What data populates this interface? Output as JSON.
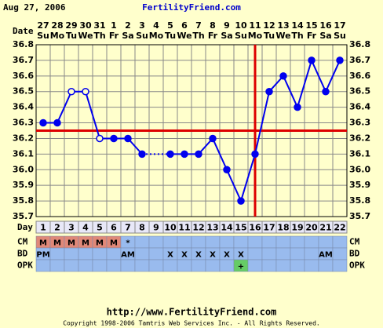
{
  "header": {
    "date": "Aug 27, 2006",
    "site": "FertilityFriend.com"
  },
  "chart_data": {
    "type": "line",
    "x_label": "Date",
    "categories": [
      "27",
      "28",
      "29",
      "30",
      "31",
      "1",
      "2",
      "3",
      "4",
      "5",
      "6",
      "7",
      "8",
      "9",
      "10",
      "11",
      "12",
      "13",
      "14",
      "15",
      "16",
      "17"
    ],
    "weekdays": [
      "Su",
      "Mo",
      "Tu",
      "We",
      "Th",
      "Fr",
      "Sa",
      "Su",
      "Mo",
      "Tu",
      "We",
      "Th",
      "Fr",
      "Sa",
      "Su",
      "Mo",
      "Tu",
      "We",
      "Th",
      "Fr",
      "Sa",
      "Su"
    ],
    "series": [
      {
        "color": "#0000ee",
        "values": [
          36.3,
          36.3,
          36.5,
          36.5,
          36.2,
          36.2,
          36.2,
          36.1,
          null,
          36.1,
          36.1,
          36.1,
          36.2,
          36.0,
          35.8,
          36.1,
          36.5,
          36.6,
          36.4,
          36.7,
          36.5,
          36.7
        ],
        "open": [
          false,
          false,
          true,
          true,
          true,
          false,
          false,
          false,
          false,
          false,
          false,
          false,
          false,
          false,
          false,
          false,
          false,
          false,
          false,
          false,
          false,
          false
        ]
      }
    ],
    "dotted_gaps": true,
    "ylim": [
      35.7,
      36.8
    ],
    "yticks": [
      35.7,
      35.8,
      35.9,
      {
        "value": 36,
        "label": "36.0"
      },
      36.1,
      36.2,
      36.3,
      36.4,
      36.5,
      36.6,
      36.7,
      36.8
    ],
    "grid": true,
    "coverline": {
      "value": 36.25,
      "color": "#dd0000"
    },
    "ovulation_day": {
      "value": 16,
      "color": "#dd0000"
    }
  },
  "table": {
    "day_label": "Day",
    "days": [
      1,
      2,
      3,
      4,
      5,
      6,
      7,
      8,
      9,
      10,
      11,
      12,
      13,
      14,
      15,
      16,
      17,
      18,
      19,
      20,
      21,
      22
    ],
    "rows": [
      {
        "label": "CM",
        "highlight_color": "#e08878",
        "cells": [
          "M",
          "M",
          "M",
          "M",
          "M",
          "M",
          "*",
          null,
          null,
          null,
          null,
          null,
          null,
          null,
          null,
          null,
          null,
          null,
          null,
          null,
          null,
          null
        ],
        "highlighted": [
          true,
          true,
          true,
          true,
          true,
          true,
          false,
          false,
          false,
          false,
          false,
          false,
          false,
          false,
          false,
          false,
          false,
          false,
          false,
          false,
          false,
          false
        ]
      },
      {
        "label": "BD",
        "highlight_color": "#e08878",
        "cells": [
          "PM",
          null,
          null,
          null,
          null,
          null,
          "AM",
          null,
          null,
          "X",
          "X",
          "X",
          "X",
          "X",
          "X",
          null,
          null,
          null,
          null,
          null,
          "AM",
          null
        ],
        "highlighted": [
          false,
          false,
          false,
          false,
          false,
          false,
          false,
          false,
          false,
          false,
          false,
          false,
          false,
          false,
          false,
          false,
          false,
          false,
          false,
          false,
          false,
          false
        ]
      },
      {
        "label": "OPK",
        "highlight_color": "#66cc66",
        "cells": [
          null,
          null,
          null,
          null,
          null,
          null,
          null,
          null,
          null,
          null,
          null,
          null,
          null,
          null,
          "+",
          null,
          null,
          null,
          null,
          null,
          null,
          null
        ],
        "highlighted": [
          false,
          false,
          false,
          false,
          false,
          false,
          false,
          false,
          false,
          false,
          false,
          false,
          false,
          false,
          true,
          false,
          false,
          false,
          false,
          false,
          false,
          false
        ]
      }
    ]
  },
  "footer": {
    "url": "http://www.FertilityFriend.com",
    "copyright": "Copyright 1998-2006 Tamtris Web Services Inc. - All Rights Reserved."
  }
}
